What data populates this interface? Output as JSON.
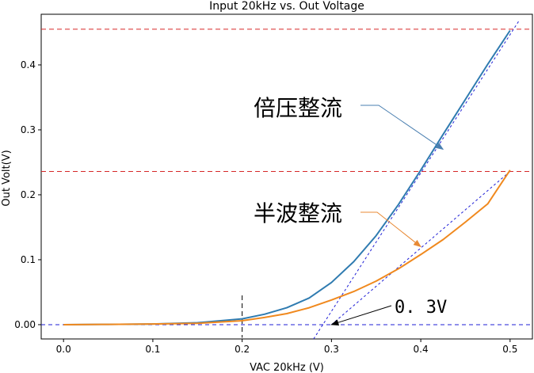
{
  "chart_data": {
    "type": "line",
    "title": "Input 20kHz vs. Out Voltage",
    "xlabel": "VAC 20kHz (V)",
    "ylabel": "Out Volt(V)",
    "xlim": [
      -0.025,
      0.525
    ],
    "ylim": [
      -0.022,
      0.478
    ],
    "x_ticks": [
      0.0,
      0.1,
      0.2,
      0.3,
      0.4,
      0.5
    ],
    "x_tick_labels": [
      "0.0",
      "0.1",
      "0.2",
      "0.3",
      "0.4",
      "0.5"
    ],
    "y_ticks": [
      0.0,
      0.1,
      0.2,
      0.3,
      0.4
    ],
    "y_tick_labels": [
      "0.00",
      "0.1",
      "0.2",
      "0.3",
      "0.4"
    ],
    "series": [
      {
        "name": "倍压整流",
        "color": "#2f7bb0",
        "x": [
          0.0,
          0.05,
          0.1,
          0.15,
          0.2,
          0.225,
          0.25,
          0.275,
          0.3,
          0.325,
          0.35,
          0.375,
          0.4,
          0.425,
          0.45,
          0.475,
          0.5
        ],
        "y": [
          0.0,
          0.0005,
          0.001,
          0.003,
          0.009,
          0.016,
          0.026,
          0.041,
          0.065,
          0.097,
          0.137,
          0.185,
          0.238,
          0.293,
          0.347,
          0.401,
          0.453
        ]
      },
      {
        "name": "半波整流",
        "color": "#f0891e",
        "x": [
          0.0,
          0.05,
          0.1,
          0.15,
          0.2,
          0.225,
          0.25,
          0.275,
          0.3,
          0.325,
          0.35,
          0.375,
          0.4,
          0.425,
          0.45,
          0.475,
          0.5
        ],
        "y": [
          0.0,
          0.0005,
          0.001,
          0.002,
          0.006,
          0.011,
          0.017,
          0.026,
          0.038,
          0.051,
          0.067,
          0.086,
          0.108,
          0.131,
          0.158,
          0.186,
          0.238
        ]
      }
    ],
    "reference_lines": {
      "horizontal_red": [
        0.455,
        0.236
      ],
      "horizontal_blue": [
        0.0
      ],
      "vertical_black": [
        0.2
      ],
      "blue_tangents": [
        {
          "from": [
            0.28,
            -0.022
          ],
          "to": [
            0.51,
            0.468
          ]
        },
        {
          "from": [
            0.3,
            0.0
          ],
          "to": [
            0.5,
            0.236
          ]
        }
      ]
    },
    "annotations": [
      {
        "text": "倍压整流",
        "color": "#4a7fb0",
        "points_to": [
          0.425,
          0.27
        ]
      },
      {
        "text": "半波整流",
        "color": "#e88a35",
        "points_to": [
          0.4,
          0.12
        ]
      },
      {
        "text": "0. 3V",
        "color": "#000000",
        "points_to": [
          0.3,
          0.0
        ]
      }
    ]
  }
}
